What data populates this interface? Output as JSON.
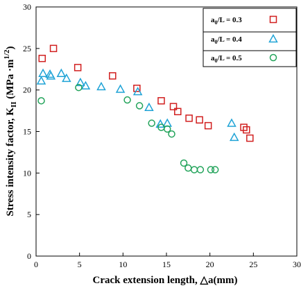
{
  "chart_data": {
    "type": "scatter",
    "xlabel": "Crack extension length, △a(mm)",
    "ylabel": "Stress intensity factor, K",
    "ylabel_sub": "II",
    "ylabel_unit": " (MPa ·m",
    "ylabel_unit_sup": "1/2",
    "ylabel_unit_close": ")",
    "xlim": [
      0,
      30
    ],
    "ylim": [
      0,
      30
    ],
    "xticks": [
      0,
      5,
      10,
      15,
      20,
      25,
      30
    ],
    "yticks": [
      0,
      5,
      10,
      15,
      20,
      25,
      30
    ],
    "grid": false,
    "legend_position": "top-right",
    "series": [
      {
        "name_prefix": "a",
        "name_sub": "0",
        "name_suffix": "/L = 0.3",
        "marker": "square",
        "color": "#d11f1f",
        "points": [
          [
            0.7,
            23.8
          ],
          [
            2.0,
            25.0
          ],
          [
            4.8,
            22.7
          ],
          [
            8.8,
            21.7
          ],
          [
            11.6,
            20.2
          ],
          [
            14.4,
            18.7
          ],
          [
            15.8,
            18.0
          ],
          [
            16.3,
            17.4
          ],
          [
            17.6,
            16.6
          ],
          [
            18.8,
            16.4
          ],
          [
            19.8,
            15.7
          ],
          [
            23.9,
            15.5
          ],
          [
            24.2,
            15.2
          ],
          [
            24.6,
            14.2
          ]
        ]
      },
      {
        "name_prefix": "a",
        "name_sub": "0",
        "name_suffix": "/L = 0.4",
        "marker": "triangle",
        "color": "#1fa3d6",
        "points": [
          [
            0.6,
            21.1
          ],
          [
            0.8,
            22.0
          ],
          [
            1.6,
            21.9
          ],
          [
            1.7,
            21.7
          ],
          [
            2.9,
            22.0
          ],
          [
            3.5,
            21.4
          ],
          [
            5.1,
            20.9
          ],
          [
            5.7,
            20.5
          ],
          [
            7.5,
            20.4
          ],
          [
            9.7,
            20.1
          ],
          [
            11.7,
            19.8
          ],
          [
            13.0,
            17.9
          ],
          [
            14.3,
            15.9
          ],
          [
            15.1,
            16.0
          ],
          [
            22.5,
            16.0
          ],
          [
            22.8,
            14.3
          ]
        ]
      },
      {
        "name_prefix": "a",
        "name_sub": "0",
        "name_suffix": "/L = 0.5",
        "marker": "circle",
        "color": "#22a35a",
        "points": [
          [
            0.6,
            18.7
          ],
          [
            4.9,
            20.3
          ],
          [
            10.5,
            18.8
          ],
          [
            11.9,
            18.1
          ],
          [
            13.3,
            16.0
          ],
          [
            14.4,
            15.5
          ],
          [
            15.1,
            15.3
          ],
          [
            15.6,
            14.7
          ],
          [
            17.0,
            11.2
          ],
          [
            17.5,
            10.6
          ],
          [
            18.2,
            10.4
          ],
          [
            18.9,
            10.4
          ],
          [
            20.1,
            10.4
          ],
          [
            20.6,
            10.4
          ]
        ]
      }
    ]
  }
}
